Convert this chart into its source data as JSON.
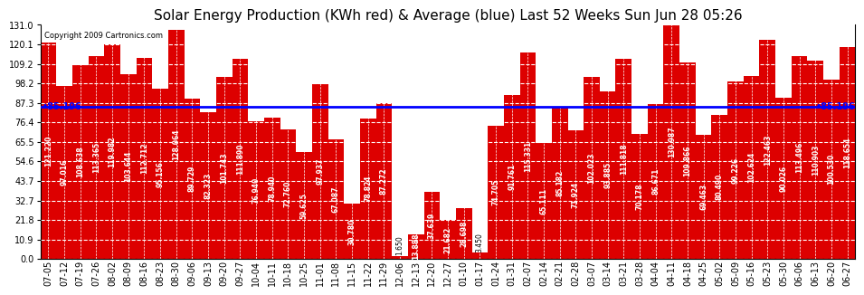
{
  "title": "Solar Energy Production (KWh red) & Average (blue) Last 52 Weeks Sun Jun 28 05:26",
  "copyright": "Copyright 2009 Cartronics.com",
  "bar_color": "#dd0000",
  "avg_line_color": "#0000ff",
  "avg_value": 85.196,
  "background_color": "#ffffff",
  "plot_bg_color": "#ffffff",
  "grid_color": "#b0b0b0",
  "bar_label_color": "#ffffff",
  "yticks": [
    0.0,
    10.9,
    21.8,
    32.7,
    43.7,
    54.6,
    65.5,
    76.4,
    87.3,
    98.2,
    109.2,
    120.1,
    131.0
  ],
  "ylim": [
    0,
    131.0
  ],
  "categories": [
    "07-05",
    "07-12",
    "07-19",
    "07-26",
    "08-02",
    "08-09",
    "08-16",
    "08-23",
    "08-30",
    "09-06",
    "09-13",
    "09-20",
    "09-27",
    "10-04",
    "10-11",
    "10-18",
    "10-25",
    "11-01",
    "11-08",
    "11-15",
    "11-22",
    "11-29",
    "12-06",
    "12-13",
    "12-20",
    "12-27",
    "01-10",
    "01-17",
    "01-24",
    "01-31",
    "02-07",
    "02-14",
    "02-21",
    "02-28",
    "03-07",
    "03-14",
    "03-21",
    "03-28",
    "04-04",
    "04-11",
    "04-18",
    "04-25",
    "05-02",
    "05-09",
    "05-16",
    "05-23",
    "05-30",
    "06-06",
    "06-13",
    "06-20",
    "06-27"
  ],
  "values": [
    121.22,
    97.016,
    108.638,
    113.365,
    119.982,
    103.644,
    112.712,
    95.156,
    128.064,
    89.729,
    82.323,
    101.743,
    111.89,
    76.94,
    78.94,
    72.76,
    59.625,
    97.937,
    67.087,
    30.78,
    78.824,
    87.272,
    1.65,
    13.888,
    37.639,
    21.682,
    28.698,
    3.45,
    74.705,
    91.761,
    115.331,
    65.111,
    85.182,
    71.924,
    102.023,
    93.885,
    111.818,
    70.178,
    86.671,
    130.987,
    109.866,
    69.463,
    80.49,
    99.226,
    102.624,
    122.463,
    90.026,
    113.496,
    110.903,
    100.53,
    118.654
  ],
  "title_fontsize": 11,
  "tick_fontsize": 7,
  "bar_label_fontsize": 5.5,
  "avg_label_fontsize": 7
}
